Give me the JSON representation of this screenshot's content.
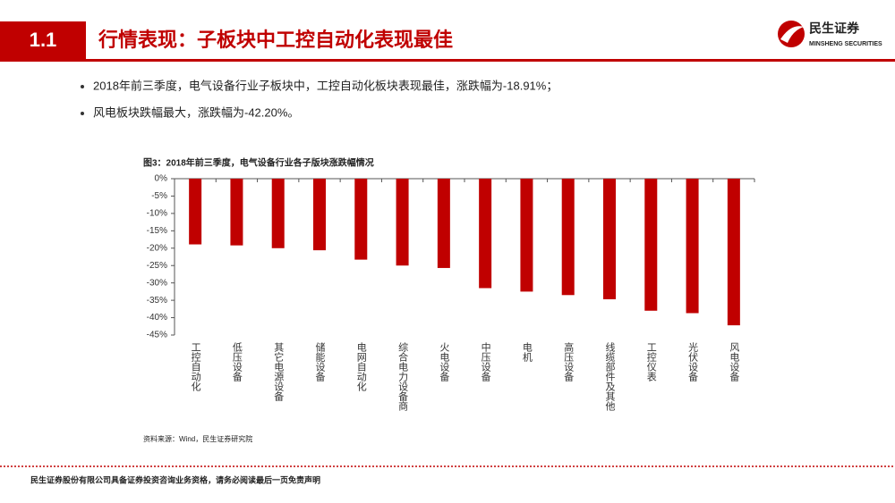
{
  "header": {
    "section": "1.1",
    "title": "行情表现：子板块中工控自动化表现最佳"
  },
  "logo": {
    "name": "民生证券",
    "sub": "MINSHENG SECURITIES"
  },
  "bullets": [
    "2018年前三季度，电气设备行业子板块中，工控自动化板块表现最佳，涨跌幅为-18.91%；",
    "风电板块跌幅最大，涨跌幅为-42.20%。"
  ],
  "chart_data": {
    "type": "bar",
    "title": "图3：2018年前三季度，电气设备行业各子版块涨跌幅情况",
    "categories": [
      "工控自动化",
      "低压设备",
      "其它电源设备",
      "储能设备",
      "电网自动化",
      "综合电力设备商",
      "火电设备",
      "中压设备",
      "电机",
      "高压设备",
      "线缆部件及其他",
      "工控仪表",
      "光伏设备",
      "风电设备"
    ],
    "values": [
      -18.91,
      -19.2,
      -20.0,
      -20.6,
      -23.3,
      -25.0,
      -25.7,
      -31.5,
      -32.5,
      -33.5,
      -34.7,
      -38.0,
      -38.7,
      -42.2
    ],
    "color": "#c00000",
    "ylim": [
      -45,
      0
    ],
    "yticks": [
      {
        "value": 0,
        "label": "0%"
      },
      {
        "value": -5,
        "label": "-5%"
      },
      {
        "value": -10,
        "label": "-10%"
      },
      {
        "value": -15,
        "label": "-15%"
      },
      {
        "value": -20,
        "label": "-20%"
      },
      {
        "value": -25,
        "label": "-25%"
      },
      {
        "value": -30,
        "label": "-30%"
      },
      {
        "value": -35,
        "label": "-35%"
      },
      {
        "value": -40,
        "label": "-40%"
      },
      {
        "value": -45,
        "label": "-45%"
      }
    ],
    "source": "资料来源：Wind，民生证券研究院"
  },
  "footer": "民生证券股份有限公司具备证券投资咨询业务资格，请务必阅读最后一页免责声明"
}
